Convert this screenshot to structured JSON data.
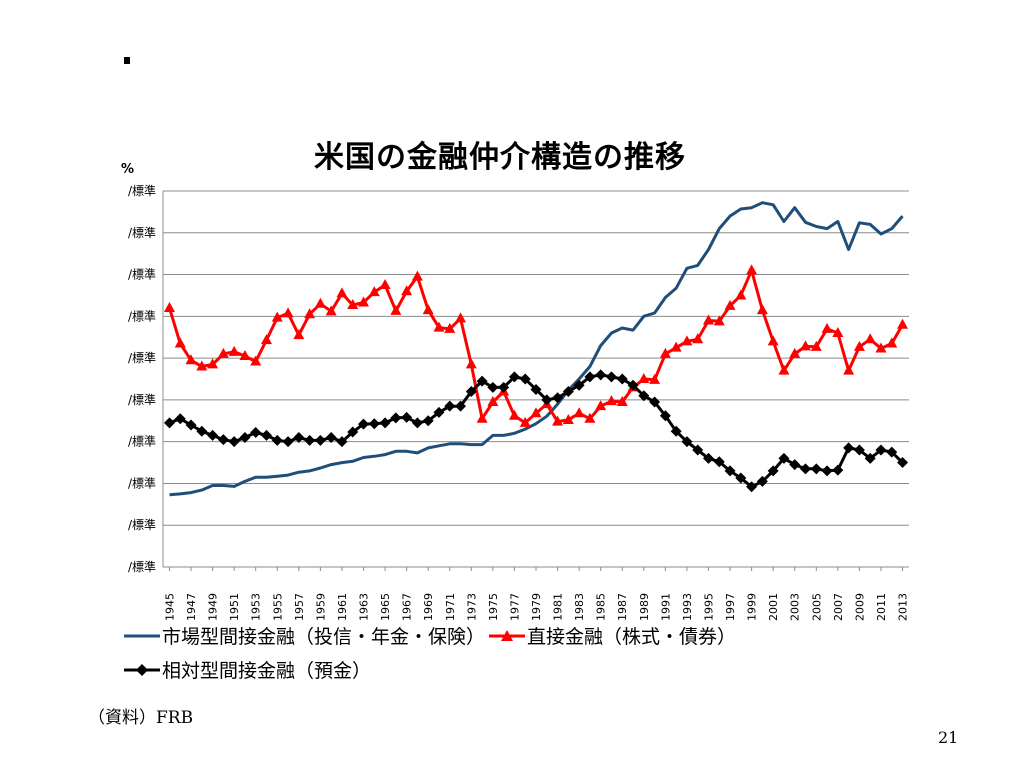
{
  "slide": {
    "bullet_mark": "",
    "source": "（資料）FRB",
    "page_number": "21"
  },
  "chart_data": {
    "type": "line",
    "title": "米国の金融仲介構造の推移",
    "ylabel": "%",
    "y_tick_labels": [
      "/標準",
      "/標準",
      "/標準",
      "/標準",
      "/標準",
      "/標準",
      "/標準",
      "/標準",
      "/標準",
      "/標準"
    ],
    "x_tick_labels": [
      "1945",
      "1947",
      "1949",
      "1951",
      "1953",
      "1955",
      "1957",
      "1959",
      "1961",
      "1963",
      "1965",
      "1967",
      "1969",
      "1971",
      "1973",
      "1975",
      "1977",
      "1979",
      "1981",
      "1983",
      "1985",
      "1987",
      "1989",
      "1991",
      "1993",
      "1995",
      "1997",
      "1999",
      "2001",
      "2003",
      "2005",
      "2007",
      "2009",
      "2011",
      "2013"
    ],
    "x": [
      1945,
      1946,
      1947,
      1948,
      1949,
      1950,
      1951,
      1952,
      1953,
      1954,
      1955,
      1956,
      1957,
      1958,
      1959,
      1960,
      1961,
      1962,
      1963,
      1964,
      1965,
      1966,
      1967,
      1968,
      1969,
      1970,
      1971,
      1972,
      1973,
      1974,
      1975,
      1976,
      1977,
      1978,
      1979,
      1980,
      1981,
      1982,
      1983,
      1984,
      1985,
      1986,
      1987,
      1988,
      1989,
      1990,
      1991,
      1992,
      1993,
      1994,
      1995,
      1996,
      1997,
      1998,
      1999,
      2000,
      2001,
      2002,
      2003,
      2004,
      2005,
      2006,
      2007,
      2008,
      2009,
      2010,
      2011,
      2012,
      2013
    ],
    "ylim": [
      0,
      9
    ],
    "grid": true,
    "legend_position": "bottom",
    "series": [
      {
        "name": "市場型間接金融（投信・年金・保険）",
        "color": "#1f4e79",
        "marker": "none",
        "values": [
          1.73,
          1.75,
          1.78,
          1.84,
          1.95,
          1.95,
          1.93,
          2.05,
          2.15,
          2.15,
          2.17,
          2.2,
          2.27,
          2.3,
          2.37,
          2.45,
          2.5,
          2.53,
          2.62,
          2.65,
          2.69,
          2.77,
          2.77,
          2.73,
          2.85,
          2.9,
          2.95,
          2.95,
          2.93,
          2.93,
          3.15,
          3.15,
          3.2,
          3.3,
          3.43,
          3.61,
          3.9,
          4.23,
          4.5,
          4.8,
          5.3,
          5.6,
          5.72,
          5.67,
          6.0,
          6.08,
          6.45,
          6.67,
          7.15,
          7.22,
          7.6,
          8.1,
          8.4,
          8.57,
          8.6,
          8.72,
          8.67,
          8.27,
          8.6,
          8.25,
          8.15,
          8.1,
          8.27,
          7.6,
          8.24,
          8.2,
          7.97,
          8.1,
          8.4
        ]
      },
      {
        "name": "直接金融（株式・債券）",
        "color": "#ff0000",
        "marker": "triangle",
        "values": [
          6.2,
          5.35,
          4.95,
          4.8,
          4.85,
          5.1,
          5.15,
          5.05,
          4.92,
          5.43,
          5.97,
          6.07,
          5.55,
          6.05,
          6.3,
          6.12,
          6.55,
          6.27,
          6.33,
          6.58,
          6.75,
          6.13,
          6.6,
          6.95,
          6.15,
          5.73,
          5.7,
          5.95,
          4.85,
          3.55,
          3.95,
          4.2,
          3.62,
          3.45,
          3.68,
          3.9,
          3.48,
          3.52,
          3.68,
          3.55,
          3.85,
          3.97,
          3.95,
          4.3,
          4.5,
          4.48,
          5.1,
          5.25,
          5.4,
          5.45,
          5.9,
          5.88,
          6.25,
          6.5,
          7.1,
          6.15,
          5.4,
          4.7,
          5.1,
          5.28,
          5.27,
          5.7,
          5.6,
          4.7,
          5.27,
          5.45,
          5.23,
          5.35,
          5.8
        ]
      },
      {
        "name": "相対型間接金融（預金）",
        "color": "#000000",
        "marker": "diamond",
        "values": [
          3.45,
          3.55,
          3.4,
          3.25,
          3.15,
          3.05,
          3.0,
          3.1,
          3.22,
          3.15,
          3.03,
          3.0,
          3.1,
          3.03,
          3.03,
          3.1,
          3.0,
          3.23,
          3.42,
          3.43,
          3.45,
          3.57,
          3.58,
          3.45,
          3.5,
          3.7,
          3.85,
          3.85,
          4.2,
          4.45,
          4.3,
          4.3,
          4.55,
          4.5,
          4.25,
          4.0,
          4.05,
          4.2,
          4.35,
          4.55,
          4.6,
          4.55,
          4.5,
          4.35,
          4.1,
          3.95,
          3.62,
          3.25,
          3.0,
          2.8,
          2.6,
          2.52,
          2.3,
          2.13,
          1.92,
          2.05,
          2.3,
          2.6,
          2.45,
          2.35,
          2.35,
          2.3,
          2.32,
          2.85,
          2.8,
          2.6,
          2.8,
          2.75,
          2.5
        ]
      }
    ]
  }
}
